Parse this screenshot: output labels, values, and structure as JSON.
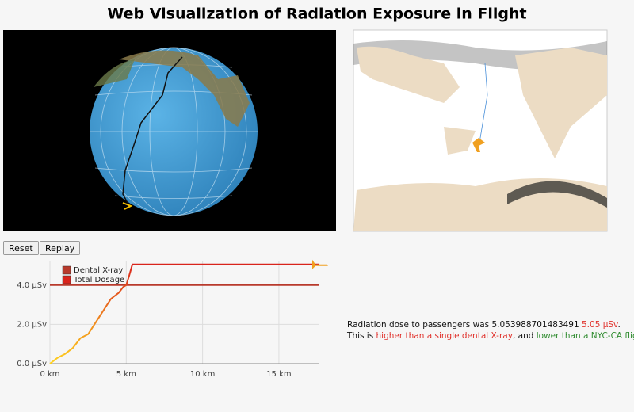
{
  "header": {
    "title": "Web Visualization of Radiation Exposure in Flight"
  },
  "buttons": [
    "Reset",
    "Replay"
  ],
  "chart": {
    "type": "line",
    "xlim": [
      0,
      17.6
    ],
    "ylim": [
      0,
      5.2
    ],
    "xticks": [
      {
        "value": 0,
        "label": "0 km"
      },
      {
        "value": 5,
        "label": "5 km"
      },
      {
        "value": 10,
        "label": "10 km"
      },
      {
        "value": 15,
        "label": "15 km"
      }
    ],
    "yticks": [
      {
        "value": 0,
        "label": "0.0 μSv"
      },
      {
        "value": 2,
        "label": "2.0 μSv"
      },
      {
        "value": 4,
        "label": "4.0 μSv"
      }
    ],
    "grid": true,
    "series": [
      {
        "name": "Dental X-ray",
        "color": "#b83a2c",
        "x": [
          0,
          17.6
        ],
        "values": [
          4.0,
          4.0
        ]
      },
      {
        "name": "Total Dosage",
        "colors": [
          "#ffd21f",
          "#d9241c"
        ],
        "x": [
          0,
          0.5,
          1,
          1.5,
          2,
          2.5,
          3,
          3.5,
          4,
          4.5,
          4.8,
          5,
          5.2,
          5.4,
          17.6
        ],
        "values": [
          0,
          0.3,
          0.5,
          0.8,
          1.3,
          1.5,
          2.1,
          2.7,
          3.3,
          3.6,
          3.9,
          4.0,
          4.5,
          5.05,
          5.05
        ]
      }
    ]
  },
  "summary": {
    "line1": [
      "Radiation dose to passengers was 5.053988701483491 ",
      "5.05 μSv",
      "."
    ],
    "line2": [
      "This is ",
      "higher than a single dental X-ray",
      ", and ",
      "lower than a NYC-CA flight",
      "."
    ]
  }
}
